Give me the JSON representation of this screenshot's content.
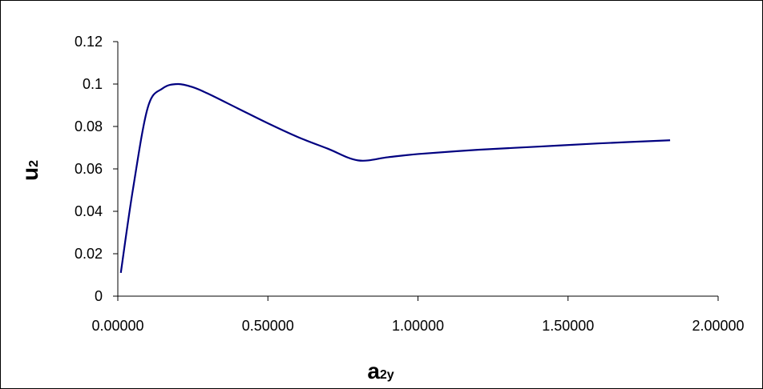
{
  "chart_data": {
    "type": "line",
    "title": "",
    "xlabel": "a",
    "xlabel_sub": "2y",
    "ylabel": "u",
    "ylabel_sub": "2",
    "xlim": [
      0,
      2
    ],
    "ylim": [
      0,
      0.12
    ],
    "x_ticks": [
      0,
      0.5,
      1,
      1.5,
      2
    ],
    "x_tick_labels": [
      "0.00000",
      "0.50000",
      "1.00000",
      "1.50000",
      "2.00000"
    ],
    "y_ticks": [
      0,
      0.02,
      0.04,
      0.06,
      0.08,
      0.1,
      0.12
    ],
    "y_tick_labels": [
      "0",
      "0.02",
      "0.04",
      "0.06",
      "0.08",
      "0.1",
      "0.12"
    ],
    "grid": false,
    "legend": "none",
    "line_color": "#000080",
    "series": [
      {
        "x": [
          0.01,
          0.05,
          0.1,
          0.15,
          0.2,
          0.25,
          0.3,
          0.4,
          0.5,
          0.6,
          0.7,
          0.8,
          0.9,
          1.0,
          1.2,
          1.4,
          1.6,
          1.84
        ],
        "y": [
          0.011,
          0.05,
          0.089,
          0.098,
          0.1,
          0.0985,
          0.0955,
          0.0885,
          0.0815,
          0.075,
          0.0695,
          0.064,
          0.0655,
          0.067,
          0.069,
          0.0705,
          0.072,
          0.0735
        ]
      }
    ]
  }
}
